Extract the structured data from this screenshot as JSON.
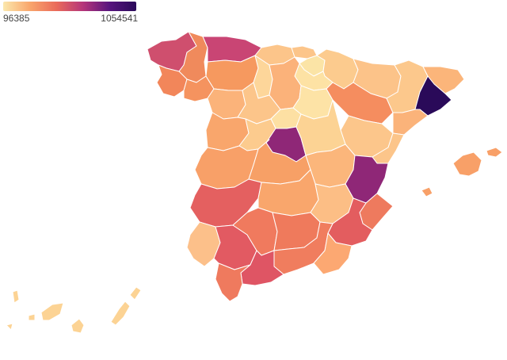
{
  "legend": {
    "min_label": "96385",
    "max_label": "1054541",
    "colors": [
      "#fbe8ad",
      "#f9a66c",
      "#ea6b5a",
      "#b5367a",
      "#57157e",
      "#2a0a59"
    ]
  },
  "region_fills": {
    "a_coruna": "#cf4f6e",
    "lugo": "#f08a5c",
    "asturias": "#c94574",
    "cantabria": "#fcc58a",
    "pais_vasco_w": "#fcc58a",
    "navarra": "#fccb8e",
    "pais_vasco_e": "#fbe4a6",
    "pontevedra": "#f2865a",
    "ourense": "#f5935f",
    "leon": "#f6995f",
    "palencia": "#fdd69a",
    "burgos": "#fbb27a",
    "la_rioja": "#fde2a4",
    "huesca": "#fcc389",
    "lleida": "#fcc88c",
    "barcelona": "#2a0a59",
    "girona": "#fbb57a",
    "zamora": "#fbb37a",
    "valladolid": "#fcc58a",
    "soria": "#fde3a6",
    "zaragoza": "#f58d5f",
    "tarragona": "#fbb37a",
    "salamanca": "#f9a66c",
    "avila": "#fccb8e",
    "segovia": "#fde0a3",
    "madrid": "#8f2777",
    "guadalajara": "#fcd394",
    "teruel": "#fcc68b",
    "castellon": "#fcc58a",
    "caceres": "#f8a068",
    "toledo": "#f7a066",
    "cuenca": "#fbb67b",
    "valencia": "#8f2777",
    "badajoz": "#e46060",
    "ciudad_real": "#f9a66c",
    "albacete": "#fcbe85",
    "alicante": "#ee7a5e",
    "murcia": "#e35d5f",
    "huelva": "#fcc08a",
    "sevilla": "#e25a62",
    "cordoba": "#f07a5e",
    "jaen": "#ef7a5c",
    "granada": "#f07d5e",
    "almeria": "#fca872",
    "cadiz": "#ef7a5e",
    "malaga": "#df5564",
    "baleares": "#f8a068",
    "canarias_w": "#fcd394",
    "canarias_e": "#fcd394"
  }
}
